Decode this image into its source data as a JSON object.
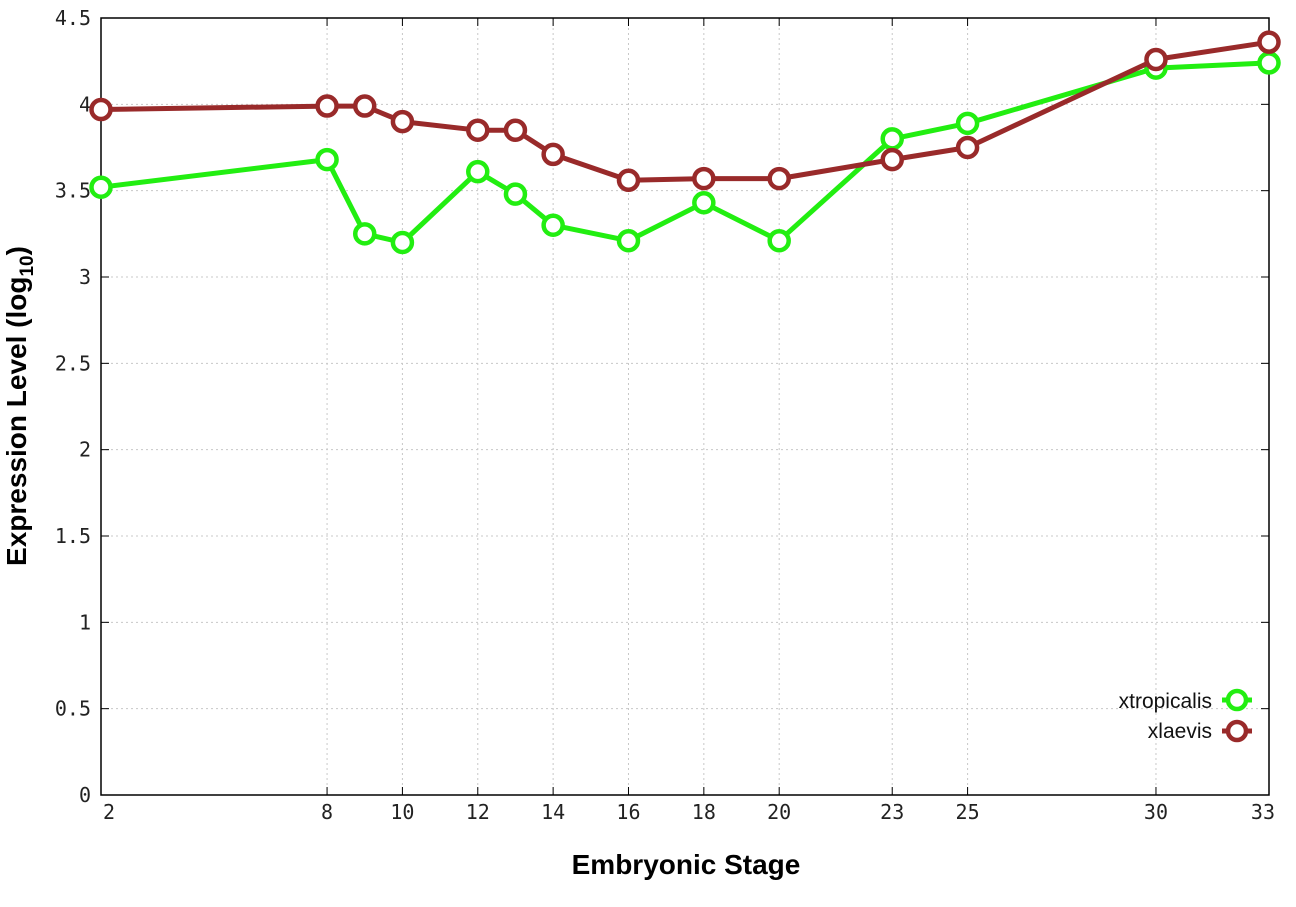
{
  "chart_data": {
    "type": "line",
    "title": "",
    "xlabel": "Embryonic Stage",
    "ylabel_main": "Expression Level (log",
    "ylabel_sub": "10",
    "ylabel_close": ")",
    "xlim": [
      2,
      33
    ],
    "ylim": [
      0,
      4.5
    ],
    "x_ticks": [
      2,
      8,
      10,
      12,
      14,
      16,
      18,
      20,
      23,
      25,
      30,
      33
    ],
    "x_tick_labels": [
      "2",
      "8",
      "10",
      "12",
      "14",
      "16",
      "18",
      "20",
      "23",
      "25",
      "30",
      "33"
    ],
    "y_ticks": [
      0,
      0.5,
      1,
      1.5,
      2,
      2.5,
      3,
      3.5,
      4,
      4.5
    ],
    "y_tick_labels": [
      "0",
      "0.5",
      "1",
      "1.5",
      "2",
      "2.5",
      "3",
      "3.5",
      "4",
      "4.5"
    ],
    "grid": true,
    "legend_position": "bottom-right",
    "series": [
      {
        "name": "xtropicalis",
        "color": "#22ee11",
        "x": [
          2,
          8,
          9,
          10,
          12,
          13,
          14,
          16,
          18,
          20,
          23,
          25,
          30,
          33
        ],
        "y": [
          3.52,
          3.68,
          3.25,
          3.2,
          3.61,
          3.48,
          3.3,
          3.21,
          3.43,
          3.21,
          3.8,
          3.89,
          4.21,
          4.24
        ]
      },
      {
        "name": "xlaevis",
        "color": "#992a2a",
        "x": [
          2,
          8,
          9,
          10,
          12,
          13,
          14,
          16,
          18,
          20,
          23,
          25,
          30,
          33
        ],
        "y": [
          3.97,
          3.99,
          3.99,
          3.9,
          3.85,
          3.85,
          3.71,
          3.56,
          3.57,
          3.57,
          3.68,
          3.75,
          4.26,
          4.36
        ]
      }
    ]
  }
}
